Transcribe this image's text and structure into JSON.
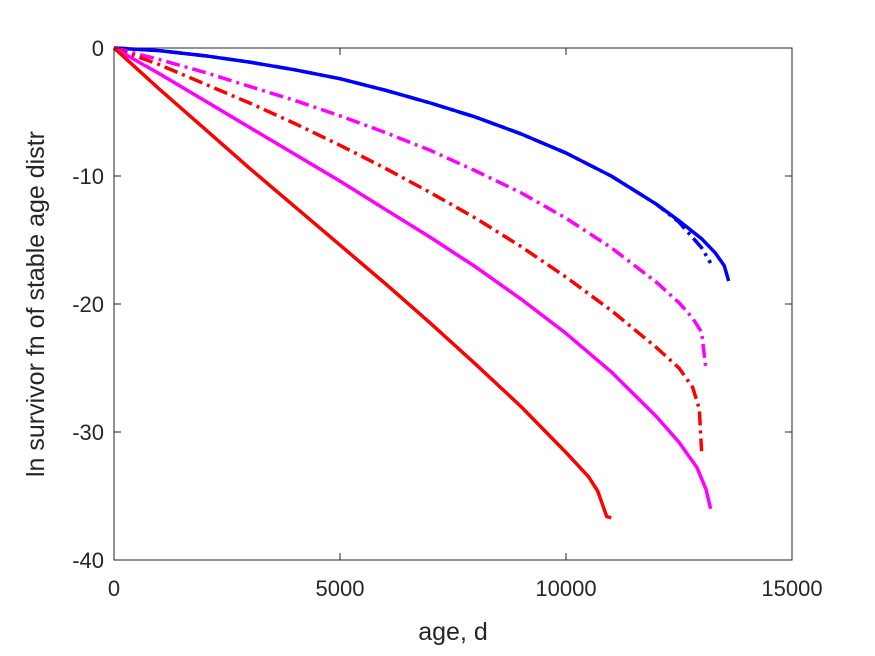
{
  "chart_data": {
    "type": "line",
    "title": "",
    "xlabel": "age, d",
    "ylabel": "ln survivor fn of stable age distr",
    "xlim": [
      0,
      15000
    ],
    "ylim": [
      -40,
      0
    ],
    "xticks": [
      0,
      5000,
      10000,
      15000
    ],
    "yticks": [
      0,
      -10,
      -20,
      -30,
      -40
    ],
    "xtick_labels": [
      "0",
      "5000",
      "10000",
      "15000"
    ],
    "ytick_labels": [
      "0",
      "-10",
      "-20",
      "-30",
      "-40"
    ],
    "grid": false,
    "legend": "none",
    "series": [
      {
        "color": "#0000ff",
        "style": "solid",
        "x": [
          0,
          1000,
          2000,
          3000,
          4000,
          5000,
          6000,
          7000,
          8000,
          9000,
          10000,
          11000,
          12000,
          12500,
          13000,
          13300,
          13500,
          13600
        ],
        "y": [
          0,
          -0.2,
          -0.6,
          -1.1,
          -1.7,
          -2.4,
          -3.3,
          -4.3,
          -5.4,
          -6.7,
          -8.2,
          -10.0,
          -12.2,
          -13.5,
          -14.9,
          -16.0,
          -17.0,
          -18.2
        ]
      },
      {
        "color": "#0000ff",
        "style": "dashdot",
        "x": [
          0,
          1000,
          2000,
          3000,
          4000,
          5000,
          6000,
          7000,
          8000,
          9000,
          10000,
          11000,
          12000,
          12500,
          13000,
          13200
        ],
        "y": [
          0,
          -0.2,
          -0.6,
          -1.1,
          -1.7,
          -2.4,
          -3.3,
          -4.3,
          -5.4,
          -6.7,
          -8.2,
          -10.0,
          -12.2,
          -13.6,
          -15.6,
          -16.8
        ]
      },
      {
        "color": "#ff00ff",
        "style": "dashdot",
        "x": [
          0,
          1000,
          2000,
          3000,
          4000,
          5000,
          6000,
          7000,
          8000,
          9000,
          10000,
          11000,
          12000,
          12500,
          12800,
          13000,
          13100
        ],
        "y": [
          0,
          -0.9,
          -1.9,
          -3.0,
          -4.1,
          -5.3,
          -6.6,
          -8.0,
          -9.6,
          -11.3,
          -13.3,
          -15.6,
          -18.3,
          -19.9,
          -21.1,
          -22.2,
          -25.2
        ]
      },
      {
        "color": "#ff0000",
        "style": "dashdot",
        "x": [
          0,
          1000,
          2000,
          3000,
          4000,
          5000,
          6000,
          7000,
          8000,
          9000,
          10000,
          11000,
          12000,
          12500,
          12800,
          12950,
          13000
        ],
        "y": [
          0,
          -1.3,
          -2.8,
          -4.3,
          -5.9,
          -7.6,
          -9.4,
          -11.3,
          -13.3,
          -15.5,
          -17.9,
          -20.5,
          -23.4,
          -25.0,
          -26.5,
          -28.2,
          -31.5
        ]
      },
      {
        "color": "#ff00ff",
        "style": "solid",
        "x": [
          0,
          1000,
          2000,
          3000,
          4000,
          5000,
          6000,
          7000,
          8000,
          9000,
          10000,
          11000,
          12000,
          12500,
          12900,
          13100,
          13200
        ],
        "y": [
          0,
          -2.0,
          -4.1,
          -6.2,
          -8.3,
          -10.4,
          -12.6,
          -14.8,
          -17.1,
          -19.6,
          -22.3,
          -25.3,
          -28.8,
          -30.8,
          -32.8,
          -34.5,
          -36.0
        ]
      },
      {
        "color": "#ff0000",
        "style": "solid",
        "x": [
          0,
          1000,
          2000,
          3000,
          4000,
          5000,
          6000,
          7000,
          8000,
          9000,
          10000,
          10500,
          10700,
          10800,
          10900,
          11000
        ],
        "y": [
          0,
          -3.2,
          -6.3,
          -9.4,
          -12.4,
          -15.4,
          -18.4,
          -21.5,
          -24.7,
          -28.0,
          -31.6,
          -33.5,
          -34.6,
          -35.6,
          -36.6,
          -36.7
        ]
      }
    ]
  }
}
